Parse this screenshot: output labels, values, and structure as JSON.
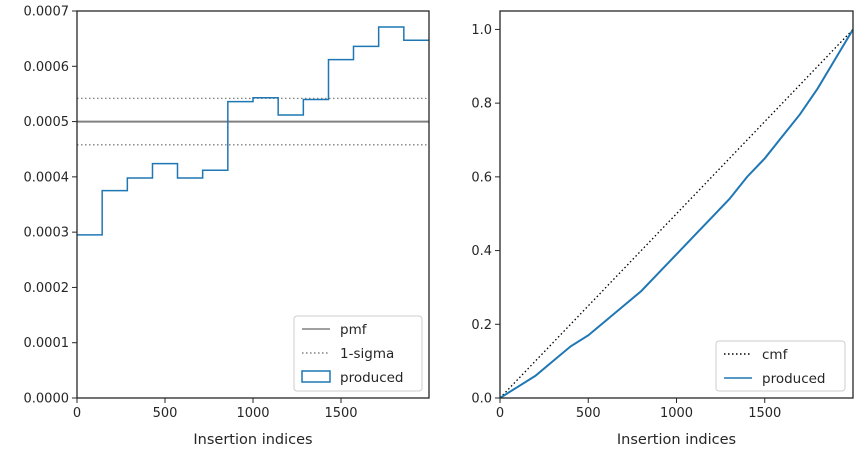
{
  "chart_data": [
    {
      "type": "line",
      "xlabel": "Insertion indices",
      "ylabel": "",
      "xlim": [
        0,
        2000
      ],
      "ylim": [
        0,
        0.0007
      ],
      "xticks": [
        0,
        500,
        1000,
        1500
      ],
      "xtick_labels": [
        "0",
        "500",
        "1000",
        "1500"
      ],
      "yticks": [
        0,
        0.0001,
        0.0002,
        0.0003,
        0.0004,
        0.0005,
        0.0006,
        0.0007
      ],
      "ytick_labels": [
        "0.0000",
        "0.0001",
        "0.0002",
        "0.0003",
        "0.0004",
        "0.0005",
        "0.0006",
        "0.0007"
      ],
      "grid": false,
      "legend_position": "lower-right",
      "series": [
        {
          "name": "pmf",
          "style": "solid",
          "color": "#808080",
          "x": [
            0,
            2000
          ],
          "y": [
            0.0005,
            0.0005
          ]
        },
        {
          "name": "1-sigma",
          "style": "dotted",
          "color": "#808080",
          "bands": [
            0.000542,
            0.000458
          ]
        },
        {
          "name": "produced",
          "style": "step",
          "color": "#1f77b4",
          "bin_edges": [
            0,
            143,
            286,
            429,
            571,
            714,
            857,
            1000,
            1143,
            1286,
            1429,
            1571,
            1714,
            1857,
            2000
          ],
          "values": [
            0.000295,
            0.000375,
            0.000398,
            0.000424,
            0.000398,
            0.000412,
            0.000536,
            0.000543,
            0.000512,
            0.00054,
            0.000612,
            0.000636,
            0.000671,
            0.000647
          ]
        }
      ]
    },
    {
      "type": "line",
      "xlabel": "Insertion indices",
      "ylabel": "",
      "xlim": [
        0,
        2000
      ],
      "ylim": [
        0,
        1.05
      ],
      "xticks": [
        0,
        500,
        1000,
        1500
      ],
      "xtick_labels": [
        "0",
        "500",
        "1000",
        "1500"
      ],
      "yticks": [
        0,
        0.2,
        0.4,
        0.6,
        0.8,
        1.0
      ],
      "ytick_labels": [
        "0.0",
        "0.2",
        "0.4",
        "0.6",
        "0.8",
        "1.0"
      ],
      "grid": false,
      "legend_position": "lower-right",
      "series": [
        {
          "name": "cmf",
          "style": "dotted",
          "color": "#000000",
          "x": [
            0,
            2000
          ],
          "y": [
            0,
            1
          ]
        },
        {
          "name": "produced",
          "style": "solid",
          "color": "#1f77b4",
          "x": [
            0,
            100,
            200,
            300,
            400,
            500,
            600,
            700,
            800,
            900,
            1000,
            1100,
            1200,
            1300,
            1400,
            1500,
            1600,
            1700,
            1800,
            1900,
            2000
          ],
          "y": [
            0,
            0.03,
            0.06,
            0.1,
            0.14,
            0.17,
            0.21,
            0.25,
            0.29,
            0.34,
            0.39,
            0.44,
            0.49,
            0.54,
            0.6,
            0.65,
            0.71,
            0.77,
            0.84,
            0.92,
            1.0
          ]
        }
      ]
    }
  ]
}
